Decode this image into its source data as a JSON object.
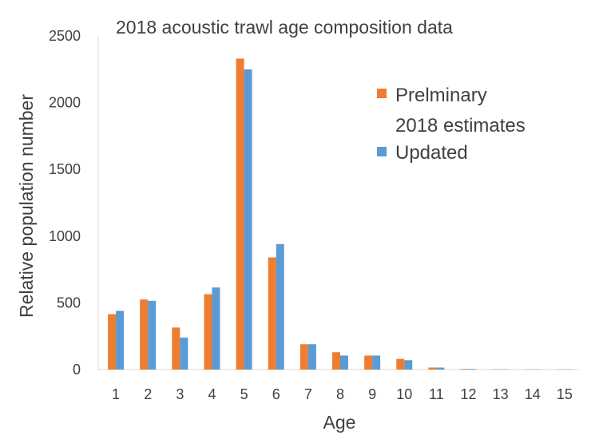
{
  "chart_data": {
    "type": "bar",
    "title": "2018 acoustic trawl age composition data",
    "xlabel": "Age",
    "ylabel": "Relative population number",
    "categories": [
      "1",
      "2",
      "3",
      "4",
      "5",
      "6",
      "7",
      "8",
      "9",
      "10",
      "11",
      "12",
      "13",
      "14",
      "15"
    ],
    "ylim": [
      0,
      2500
    ],
    "yticks": [
      0,
      500,
      1000,
      1500,
      2000,
      2500
    ],
    "grid": false,
    "legend_position": "top-right",
    "series": [
      {
        "name": "Prelminary 2018 estimates",
        "legend_lines": [
          "Prelminary",
          "2018 estimates"
        ],
        "color": "#ED7D31",
        "values": [
          415,
          525,
          315,
          565,
          2330,
          840,
          190,
          130,
          105,
          80,
          15,
          5,
          3,
          2,
          2
        ]
      },
      {
        "name": "Updated",
        "legend_lines": [
          "Updated"
        ],
        "color": "#5B9BD5",
        "values": [
          440,
          515,
          240,
          615,
          2250,
          940,
          190,
          105,
          105,
          70,
          15,
          5,
          3,
          2,
          2
        ]
      }
    ]
  }
}
